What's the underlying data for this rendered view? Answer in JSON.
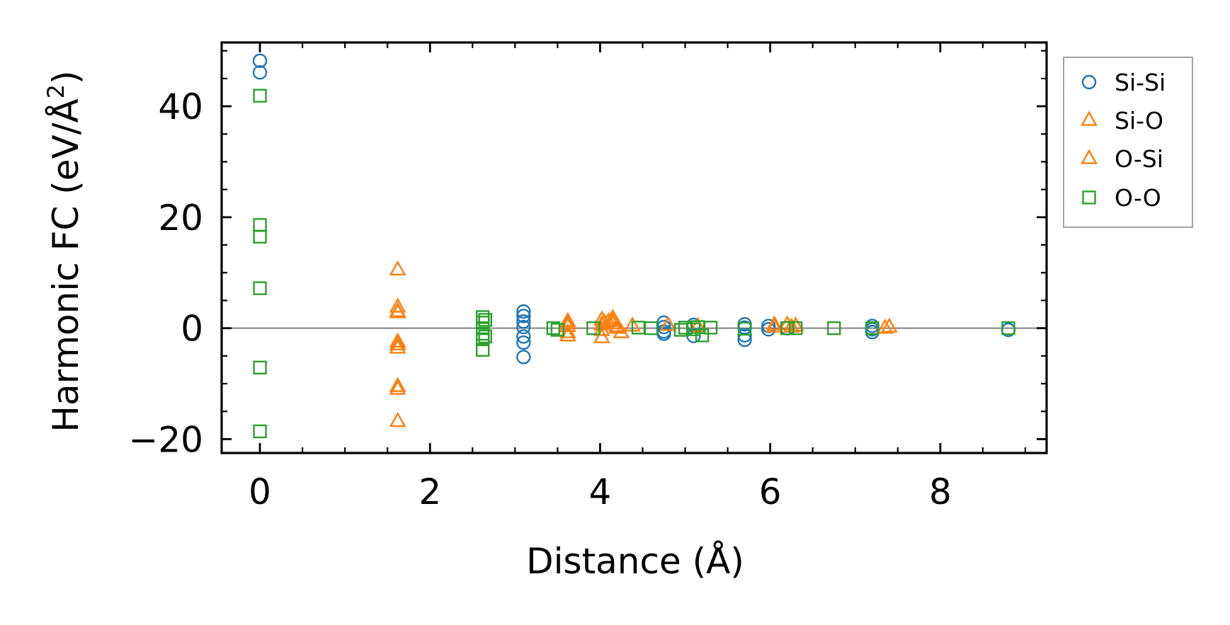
{
  "chart_data": {
    "type": "scatter",
    "title": "",
    "xlabel": "Distance (Å)",
    "ylabel": "Harmonic FC (eV/Å²)",
    "ylabel_main": "Harmonic FC (eV/Å",
    "ylabel_sup": "2",
    "ylabel_end": ")",
    "xlim": [
      -0.45,
      9.25
    ],
    "ylim": [
      -22.5,
      51.5
    ],
    "xticks": [
      0,
      2,
      4,
      6,
      8
    ],
    "xtick_labels": [
      "0",
      "2",
      "4",
      "6",
      "8"
    ],
    "yticks": [
      -20,
      0,
      20,
      40
    ],
    "ytick_labels": [
      "−20",
      "0",
      "20",
      "40"
    ],
    "x_minor_step": 0.5,
    "y_minor_step": 5,
    "zero_line": true,
    "legend_position": "outside-right-top",
    "series": [
      {
        "name": "Si-Si",
        "marker": "circle",
        "color": "#1f77b4",
        "points": [
          [
            0,
            48.2
          ],
          [
            0,
            46.1
          ],
          [
            3.1,
            3.0
          ],
          [
            3.1,
            2.2
          ],
          [
            3.1,
            1.2
          ],
          [
            3.1,
            0.2
          ],
          [
            3.1,
            -1.5
          ],
          [
            3.1,
            -2.6
          ],
          [
            3.1,
            -5.2
          ],
          [
            4.75,
            1.0
          ],
          [
            4.75,
            0.2
          ],
          [
            4.75,
            -0.6
          ],
          [
            4.75,
            -1.0
          ],
          [
            5.1,
            0.6
          ],
          [
            5.1,
            -1.4
          ],
          [
            5.7,
            0.7
          ],
          [
            5.7,
            0.1
          ],
          [
            5.7,
            -1.3
          ],
          [
            5.7,
            -2.1
          ],
          [
            5.98,
            0.4
          ],
          [
            5.98,
            -0.2
          ],
          [
            6.2,
            0.0
          ],
          [
            7.2,
            0.4
          ],
          [
            7.2,
            -0.2
          ],
          [
            7.2,
            -0.7
          ],
          [
            8.8,
            -0.3
          ]
        ]
      },
      {
        "name": "Si-O",
        "marker": "triangle",
        "color": "#ff7f0e",
        "points": [
          [
            1.62,
            10.5
          ],
          [
            1.62,
            3.8
          ],
          [
            1.62,
            2.8
          ],
          [
            1.62,
            -2.5
          ],
          [
            1.62,
            -3.6
          ],
          [
            1.62,
            -10.5
          ],
          [
            1.62,
            -16.8
          ],
          [
            3.62,
            1.2
          ],
          [
            3.62,
            0.3
          ],
          [
            3.62,
            -0.8
          ],
          [
            3.62,
            -1.4
          ],
          [
            4.02,
            1.5
          ],
          [
            4.02,
            0.6
          ],
          [
            4.02,
            -0.4
          ],
          [
            4.02,
            -1.7
          ],
          [
            4.1,
            1.2
          ],
          [
            4.15,
            1.8
          ],
          [
            4.15,
            0.8
          ],
          [
            4.2,
            0.0
          ],
          [
            4.25,
            -0.8
          ],
          [
            4.38,
            0.4
          ],
          [
            4.8,
            0.5
          ],
          [
            5.15,
            0.3
          ],
          [
            6.05,
            0.6
          ],
          [
            6.2,
            0.6
          ],
          [
            6.3,
            0.4
          ],
          [
            7.4,
            0.2
          ]
        ]
      },
      {
        "name": "O-Si",
        "marker": "triangle",
        "color": "#ff7f0e",
        "points": [
          [
            1.62,
            3.0
          ],
          [
            1.62,
            -3.0
          ],
          [
            1.62,
            -11.0
          ],
          [
            3.62,
            0.8
          ],
          [
            4.05,
            1.0
          ],
          [
            4.15,
            1.4
          ],
          [
            4.2,
            0.3
          ],
          [
            6.05,
            0.2
          ],
          [
            6.25,
            0.2
          ],
          [
            7.35,
            0.0
          ]
        ]
      },
      {
        "name": "O-O",
        "marker": "square",
        "color": "#2ca02c",
        "points": [
          [
            0,
            41.9
          ],
          [
            0,
            18.6
          ],
          [
            0,
            16.5
          ],
          [
            0,
            7.2
          ],
          [
            0,
            -7.1
          ],
          [
            0,
            -18.6
          ],
          [
            2.62,
            2.0
          ],
          [
            2.62,
            1.0
          ],
          [
            2.62,
            0.0
          ],
          [
            2.62,
            -1.0
          ],
          [
            2.62,
            -2.0
          ],
          [
            2.62,
            -3.9
          ],
          [
            2.65,
            1.5
          ],
          [
            2.65,
            -1.5
          ],
          [
            3.45,
            0.0
          ],
          [
            3.5,
            -0.3
          ],
          [
            3.92,
            0.0
          ],
          [
            4.45,
            0.1
          ],
          [
            4.6,
            0.0
          ],
          [
            4.95,
            -0.3
          ],
          [
            5.0,
            0.1
          ],
          [
            5.1,
            -0.2
          ],
          [
            5.15,
            0.2
          ],
          [
            5.2,
            -1.3
          ],
          [
            5.3,
            0.1
          ],
          [
            5.7,
            -0.1
          ],
          [
            6.2,
            0.0
          ],
          [
            6.3,
            0.0
          ],
          [
            6.75,
            0.0
          ],
          [
            7.2,
            0.0
          ],
          [
            8.8,
            0.0
          ]
        ]
      }
    ]
  }
}
